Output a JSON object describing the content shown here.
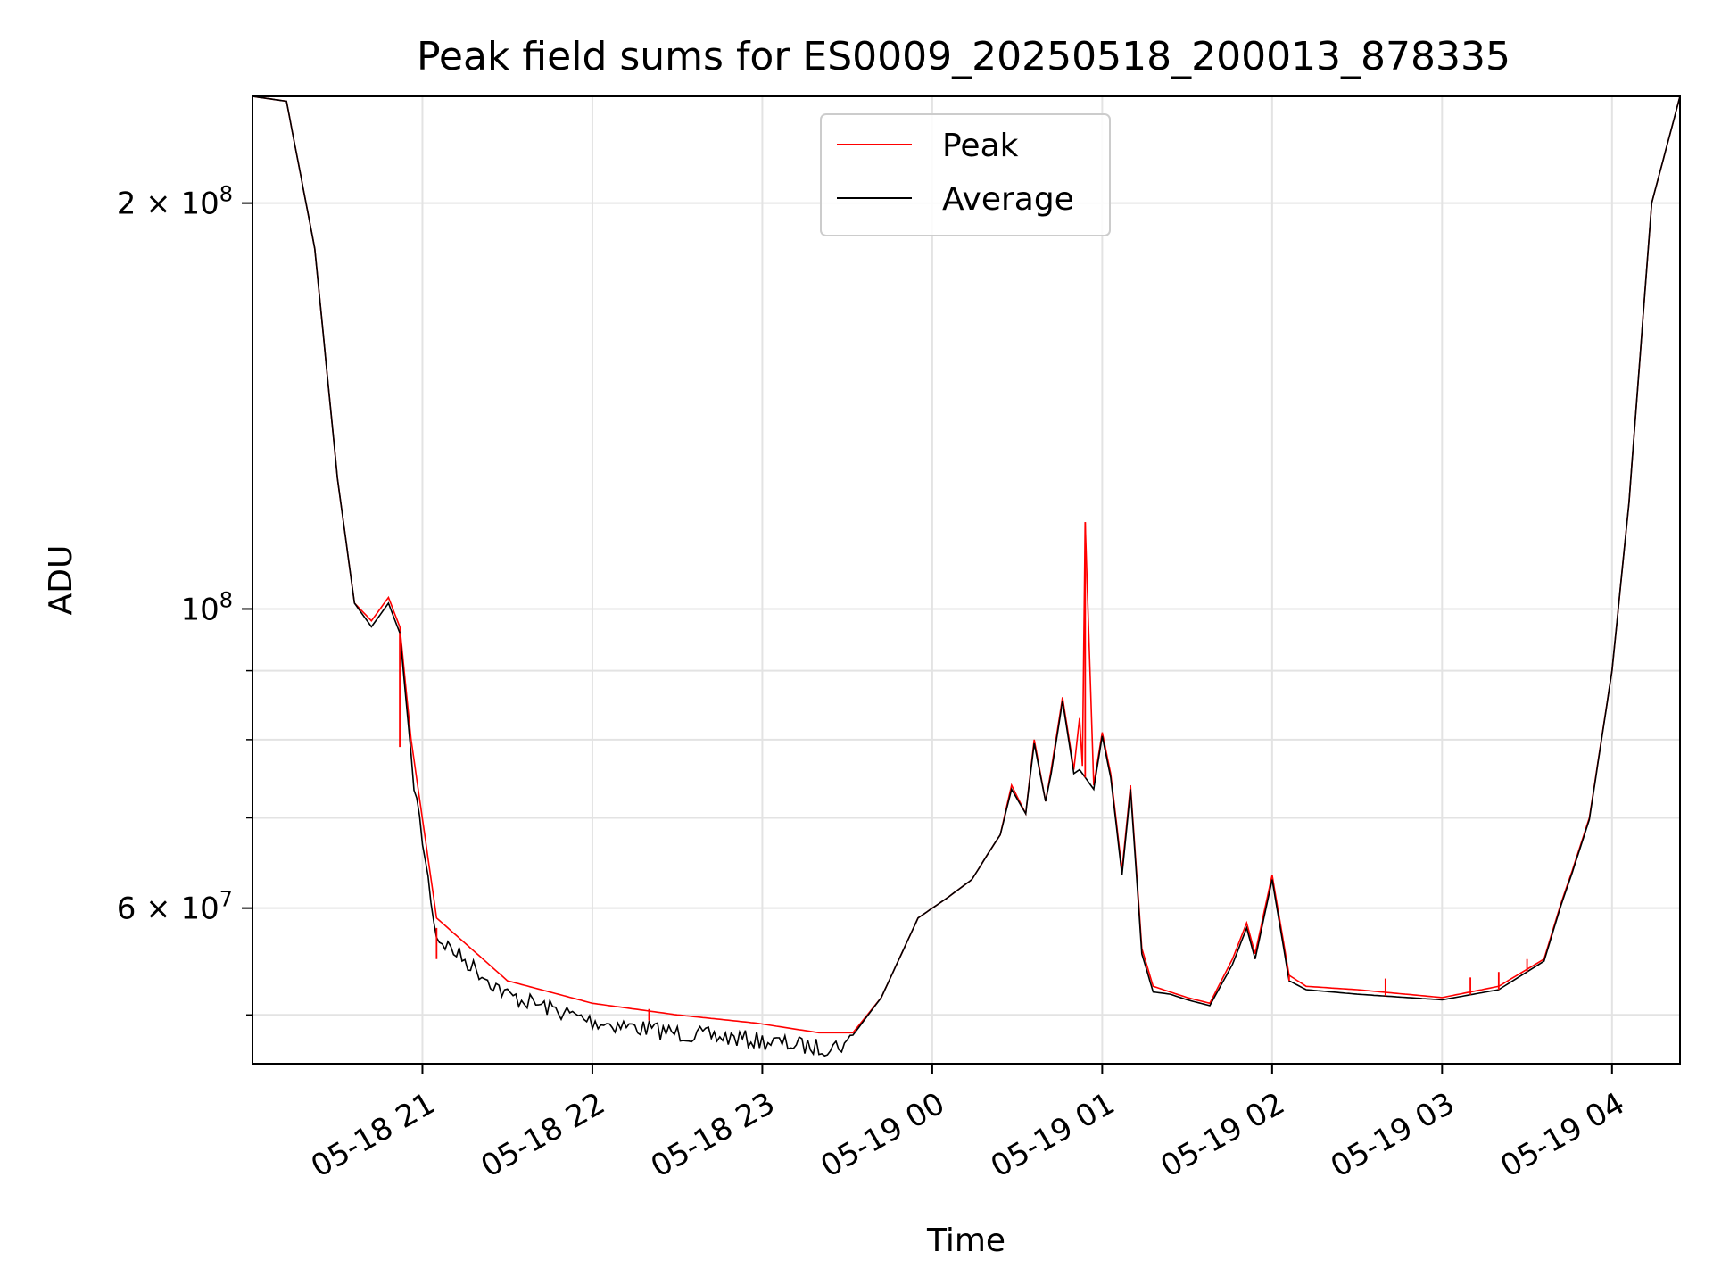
{
  "chart_data": {
    "type": "line",
    "title": "Peak field sums for ES0009_20250518_200013_878335",
    "xlabel": "Time",
    "ylabel": "ADU",
    "yscale": "log",
    "xlim": [
      "2025-05-18 20:00",
      "2025-05-19 04:24"
    ],
    "ylim": [
      46000000,
      240000000
    ],
    "grid": true,
    "legend_position": "top-center",
    "x_ticks": [
      {
        "value": "2025-05-18 21:00",
        "label": "05-18 21"
      },
      {
        "value": "2025-05-18 22:00",
        "label": "05-18 22"
      },
      {
        "value": "2025-05-18 23:00",
        "label": "05-18 23"
      },
      {
        "value": "2025-05-19 00:00",
        "label": "05-19 00"
      },
      {
        "value": "2025-05-19 01:00",
        "label": "05-19 01"
      },
      {
        "value": "2025-05-19 02:00",
        "label": "05-19 02"
      },
      {
        "value": "2025-05-19 03:00",
        "label": "05-19 03"
      },
      {
        "value": "2025-05-19 04:00",
        "label": "05-19 04"
      }
    ],
    "y_major_ticks": [
      {
        "value": 60000000,
        "mantissa": "6",
        "exponent": "7"
      },
      {
        "value": 100000000,
        "mantissa": "",
        "exponent": "8"
      },
      {
        "value": 200000000,
        "mantissa": "2",
        "exponent": "8"
      }
    ],
    "y_minor_ticks": [
      50000000,
      70000000,
      80000000,
      90000000
    ],
    "series": [
      {
        "name": "Peak",
        "color": "#ff0000",
        "x": [
          "2025-05-18 20:00",
          "2025-05-18 20:12",
          "2025-05-18 20:22",
          "2025-05-18 20:30",
          "2025-05-18 20:36",
          "2025-05-18 20:42",
          "2025-05-18 20:48",
          "2025-05-18 20:52",
          "2025-05-18 20:56",
          "2025-05-18 21:05",
          "2025-05-18 21:30",
          "2025-05-18 22:00",
          "2025-05-18 22:30",
          "2025-05-18 22:58",
          "2025-05-18 23:20",
          "2025-05-18 23:32",
          "2025-05-18 23:42",
          "2025-05-18 23:55",
          "2025-05-19 00:05",
          "2025-05-19 00:14",
          "2025-05-19 00:20",
          "2025-05-19 00:24",
          "2025-05-19 00:28",
          "2025-05-19 00:33",
          "2025-05-19 00:36",
          "2025-05-19 00:40",
          "2025-05-19 00:42",
          "2025-05-19 00:46",
          "2025-05-19 00:50",
          "2025-05-19 00:52",
          "2025-05-19 00:53",
          "2025-05-19 00:54",
          "2025-05-19 00:57",
          "2025-05-19 01:00",
          "2025-05-19 01:03",
          "2025-05-19 01:07",
          "2025-05-19 01:10",
          "2025-05-19 01:14",
          "2025-05-19 01:18",
          "2025-05-19 01:24",
          "2025-05-19 01:30",
          "2025-05-19 01:38",
          "2025-05-19 01:46",
          "2025-05-19 01:51",
          "2025-05-19 01:54",
          "2025-05-19 02:00",
          "2025-05-19 02:06",
          "2025-05-19 02:12",
          "2025-05-19 02:30",
          "2025-05-19 03:00",
          "2025-05-19 03:20",
          "2025-05-19 03:36",
          "2025-05-19 03:42",
          "2025-05-19 03:46",
          "2025-05-19 03:52",
          "2025-05-19 04:00",
          "2025-05-19 04:06",
          "2025-05-19 04:14",
          "2025-05-19 04:24"
        ],
        "y": [
          240000000,
          238000000,
          185000000,
          125000000,
          101000000,
          98000000,
          102000000,
          97000000,
          80000000,
          59000000,
          53000000,
          51000000,
          50000000,
          49300000,
          48500000,
          48500000,
          51500000,
          59000000,
          61000000,
          63000000,
          66000000,
          68000000,
          74000000,
          70500000,
          80000000,
          72000000,
          76000000,
          86000000,
          76000000,
          83000000,
          76500000,
          116000000,
          74000000,
          81000000,
          75500000,
          64000000,
          74000000,
          56000000,
          52500000,
          52000000,
          51500000,
          51000000,
          55000000,
          58500000,
          55500000,
          63500000,
          53500000,
          52500000,
          52200000,
          51500000,
          52500000,
          55000000,
          60500000,
          64000000,
          70000000,
          90000000,
          120000000,
          200000000,
          240000000
        ],
        "spikes": [
          {
            "x": "2025-05-18 20:52",
            "y": 79000000
          },
          {
            "x": "2025-05-18 21:05",
            "y": 55000000
          },
          {
            "x": "2025-05-18 22:20",
            "y": 50500000
          },
          {
            "x": "2025-05-19 00:54",
            "y": 116000000
          },
          {
            "x": "2025-05-19 02:06",
            "y": 53500000
          },
          {
            "x": "2025-05-19 02:40",
            "y": 53200000
          },
          {
            "x": "2025-05-19 03:10",
            "y": 53300000
          },
          {
            "x": "2025-05-19 03:20",
            "y": 53800000
          },
          {
            "x": "2025-05-19 03:30",
            "y": 55000000
          }
        ]
      },
      {
        "name": "Average",
        "color": "#000000",
        "x": [
          "2025-05-18 20:00",
          "2025-05-18 20:12",
          "2025-05-18 20:22",
          "2025-05-18 20:30",
          "2025-05-18 20:36",
          "2025-05-18 20:42",
          "2025-05-18 20:48",
          "2025-05-18 20:52",
          "2025-05-18 20:56",
          "2025-05-18 21:05",
          "2025-05-18 21:30",
          "2025-05-18 22:00",
          "2025-05-18 22:30",
          "2025-05-18 22:58",
          "2025-05-18 23:20",
          "2025-05-18 23:32",
          "2025-05-18 23:42",
          "2025-05-18 23:55",
          "2025-05-19 00:05",
          "2025-05-19 00:14",
          "2025-05-19 00:20",
          "2025-05-19 00:24",
          "2025-05-19 00:28",
          "2025-05-19 00:33",
          "2025-05-19 00:36",
          "2025-05-19 00:40",
          "2025-05-19 00:42",
          "2025-05-19 00:46",
          "2025-05-19 00:50",
          "2025-05-19 00:52",
          "2025-05-19 00:54",
          "2025-05-19 00:57",
          "2025-05-19 01:00",
          "2025-05-19 01:03",
          "2025-05-19 01:07",
          "2025-05-19 01:10",
          "2025-05-19 01:14",
          "2025-05-19 01:18",
          "2025-05-19 01:24",
          "2025-05-19 01:30",
          "2025-05-19 01:38",
          "2025-05-19 01:46",
          "2025-05-19 01:51",
          "2025-05-19 01:54",
          "2025-05-19 02:00",
          "2025-05-19 02:06",
          "2025-05-19 02:12",
          "2025-05-19 02:30",
          "2025-05-19 03:00",
          "2025-05-19 03:20",
          "2025-05-19 03:36",
          "2025-05-19 03:42",
          "2025-05-19 03:46",
          "2025-05-19 03:52",
          "2025-05-19 04:00",
          "2025-05-19 04:06",
          "2025-05-19 04:14",
          "2025-05-19 04:24"
        ],
        "y": [
          240000000,
          238000000,
          185000000,
          125000000,
          101000000,
          97000000,
          101000000,
          96000000,
          78000000,
          58000000,
          52500000,
          50200000,
          49200000,
          48600000,
          48000000,
          48300000,
          51500000,
          59000000,
          61000000,
          63000000,
          66000000,
          68000000,
          73500000,
          70500000,
          79500000,
          72000000,
          75500000,
          85500000,
          75500000,
          76000000,
          75000000,
          73500000,
          80500000,
          75000000,
          63500000,
          73500000,
          55500000,
          52000000,
          51800000,
          51300000,
          50800000,
          54500000,
          58000000,
          55000000,
          63000000,
          53000000,
          52200000,
          51800000,
          51300000,
          52200000,
          54800000,
          60300000,
          63800000,
          69800000,
          90000000,
          120000000,
          200000000,
          240000000
        ],
        "noise": {
          "from": "2025-05-18 20:56",
          "to": "2025-05-18 23:30",
          "amplitude_fraction": 0.015
        }
      }
    ]
  }
}
